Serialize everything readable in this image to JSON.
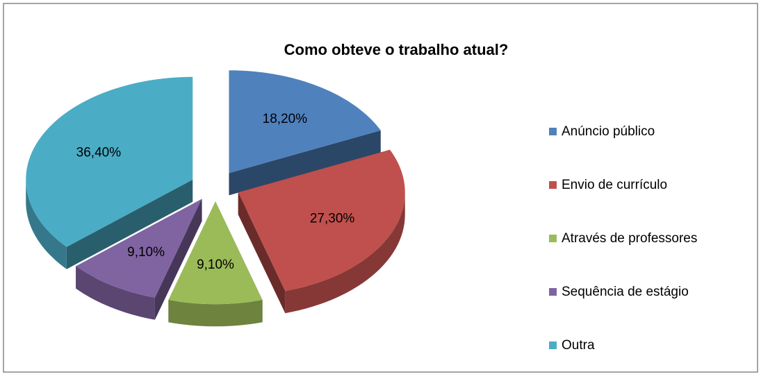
{
  "chart_data": {
    "type": "pie",
    "title": "Como obteve o trabalho atual?",
    "categories": [
      "Anúncio público",
      "Envio de currículo",
      "Através de professores",
      "Sequência de estágio",
      "Outra"
    ],
    "values": [
      18.2,
      27.3,
      9.1,
      9.1,
      36.4
    ],
    "value_labels": [
      "18,20%",
      "27,30%",
      "9,10%",
      "9,10%",
      "36,40%"
    ],
    "colors": [
      "#4f81bd",
      "#c0504d",
      "#9bbb59",
      "#8064a2",
      "#4bacc6"
    ],
    "legend": "right"
  }
}
